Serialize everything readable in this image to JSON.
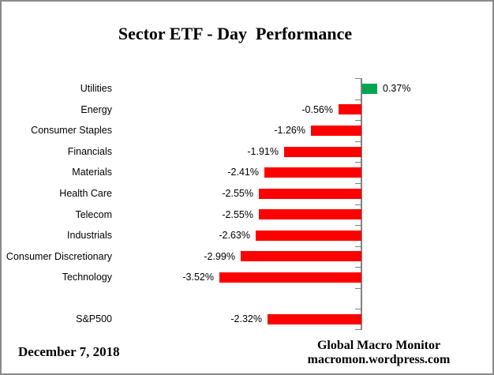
{
  "chart_data": {
    "type": "bar",
    "orientation": "horizontal",
    "title": "Sector ETF - Day  Performance",
    "categories": [
      "Utilities",
      "Energy",
      "Consumer Staples",
      "Financials",
      "Materials",
      "Health Care",
      "Telecom",
      "Industrials",
      "Consumer Discretionary",
      "Technology",
      "",
      "S&P500"
    ],
    "values": [
      0.37,
      -0.56,
      -1.26,
      -1.91,
      -2.41,
      -2.55,
      -2.55,
      -2.63,
      -2.99,
      -3.52,
      null,
      -2.32
    ],
    "value_labels": [
      "0.37%",
      "-0.56%",
      "-1.26%",
      "-1.91%",
      "-2.41%",
      "-2.55%",
      "-2.55%",
      "-2.63%",
      "-2.99%",
      "-3.52%",
      "",
      "-2.32%"
    ],
    "xlim": [
      -3.52,
      0.37
    ],
    "grid": false,
    "legend": false,
    "positive_color": "#00A64F",
    "negative_color": "#FF0000",
    "axis_color": "#808080"
  },
  "footer": {
    "date": "December 7, 2018",
    "credit_line1": "Global Macro Monitor",
    "credit_line2": "macromon.wordpress.com"
  }
}
